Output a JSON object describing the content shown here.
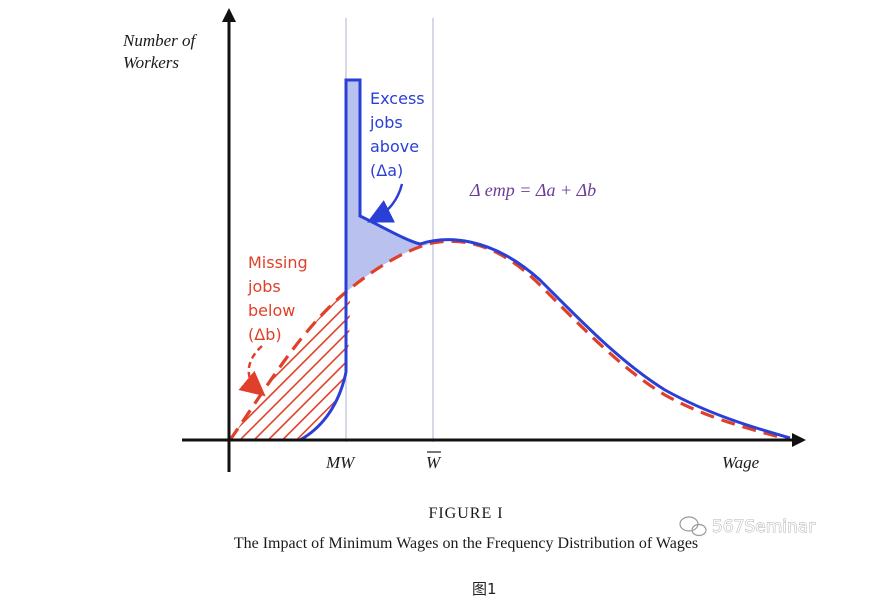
{
  "diagram": {
    "y_axis_label": [
      "Number of",
      "Workers"
    ],
    "x_axis_label": "Wage",
    "tick_labels": {
      "mw": "MW",
      "wbar": "W"
    },
    "excess_label": [
      "Excess",
      "jobs",
      "above",
      "(Δa)"
    ],
    "missing_label": [
      "Missing",
      "jobs",
      "below",
      "(Δb)"
    ],
    "equation": "Δ emp = Δa + Δb",
    "colors": {
      "blue": "#2a3fd6",
      "red": "#e0402a",
      "purple": "#6a3d9a",
      "shade": "#b9c2ee",
      "guide": "#b8bdd8"
    }
  },
  "caption": {
    "figure_label": "FIGURE I",
    "title": "The Impact of Minimum Wages on the Frequency Distribution of Wages"
  },
  "watermark": "567Seminar",
  "footer_label": "图1"
}
